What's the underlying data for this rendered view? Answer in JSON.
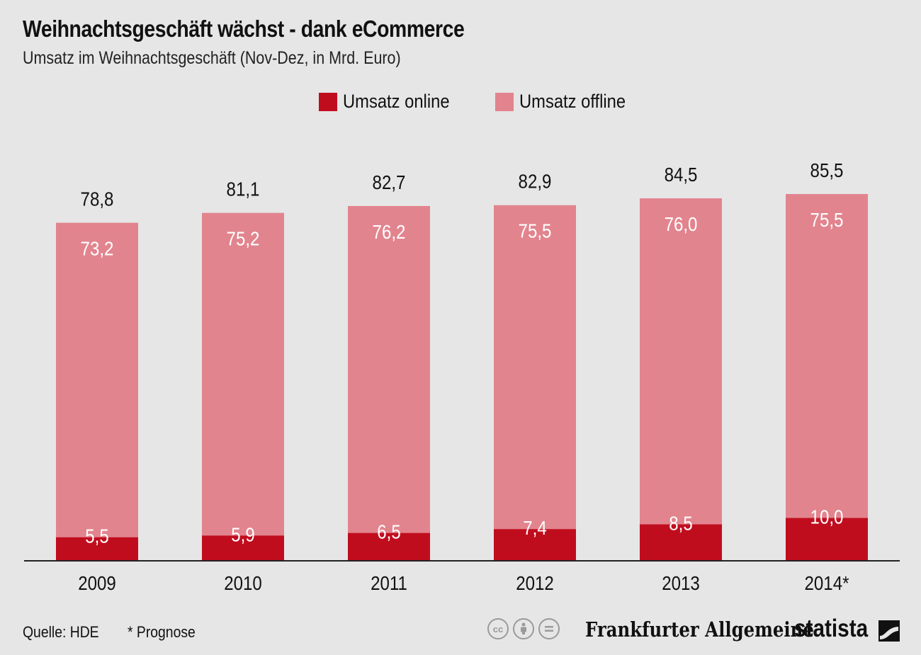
{
  "header": {
    "title": "Weihnachtsgeschäft wächst - dank eCommerce",
    "subtitle": "Umsatz im Weihnachtsgeschäft (Nov-Dez, in Mrd. Euro)"
  },
  "legend": {
    "online_label": "Umsatz online",
    "offline_label": "Umsatz offline"
  },
  "colors": {
    "online": "#c00d1e",
    "offline": "#e2848e",
    "axis": "#222222",
    "background": "#e6e6e6"
  },
  "chart_data": {
    "type": "bar",
    "stacked": true,
    "categories": [
      "2009",
      "2010",
      "2011",
      "2012",
      "2013",
      "2014*"
    ],
    "series": [
      {
        "name": "Umsatz online",
        "values": [
          5.5,
          5.9,
          6.5,
          7.4,
          8.5,
          10.0
        ],
        "labels": [
          "5,5",
          "5,9",
          "6,5",
          "7,4",
          "8,5",
          "10,0"
        ]
      },
      {
        "name": "Umsatz offline",
        "values": [
          73.2,
          75.2,
          76.2,
          75.5,
          76.0,
          75.5
        ],
        "labels": [
          "73,2",
          "75,2",
          "76,2",
          "75,5",
          "76,0",
          "75,5"
        ]
      }
    ],
    "totals": [
      78.8,
      81.1,
      82.7,
      82.9,
      84.5,
      85.5
    ],
    "total_labels": [
      "78,8",
      "81,1",
      "82,7",
      "82,9",
      "84,5",
      "85,5"
    ],
    "ylim": [
      0,
      85.5
    ],
    "grid": false,
    "legend_position": "top-center"
  },
  "footer": {
    "source": "Quelle: HDE",
    "note": "* Prognose",
    "cc_icons": [
      "cc-icon",
      "by-icon",
      "nd-icon"
    ],
    "publisher": "Frankfurter Allgemeine",
    "brand": "statista"
  }
}
